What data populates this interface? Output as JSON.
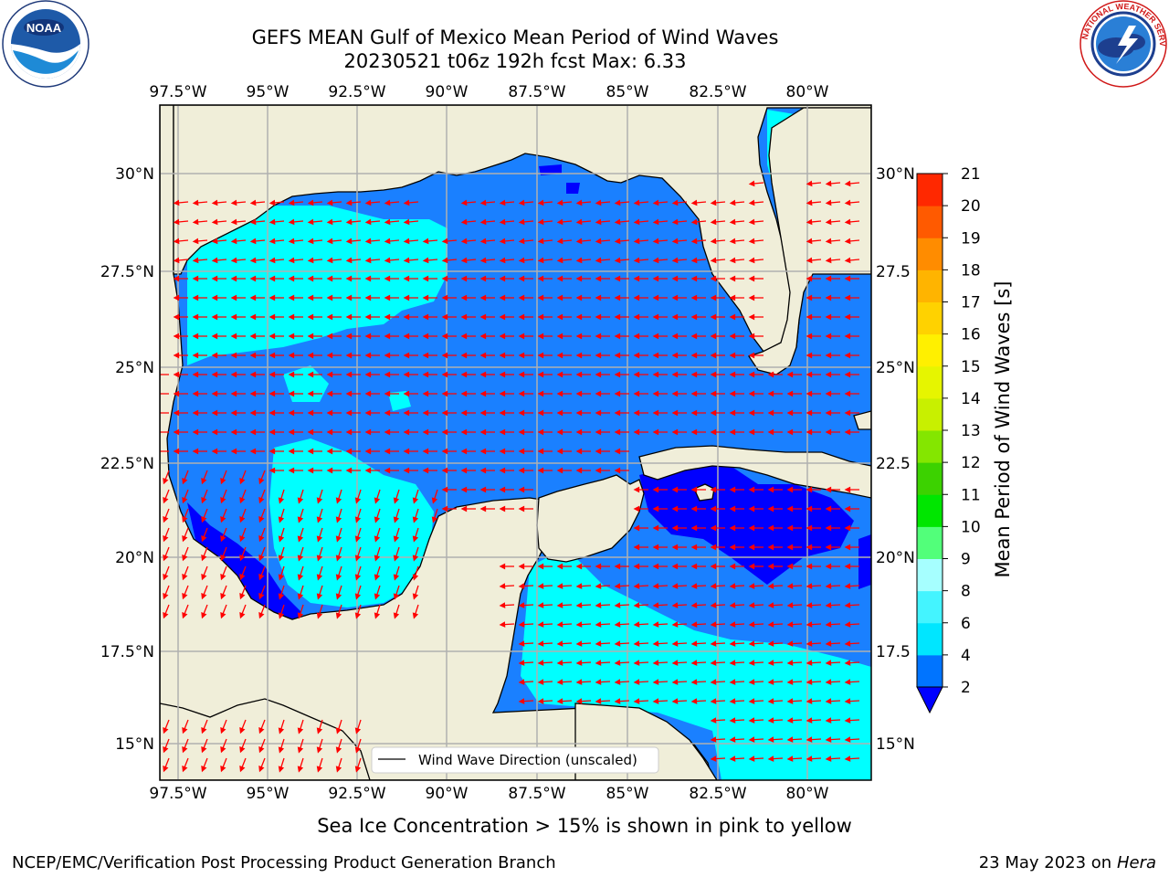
{
  "header": {
    "title_line1": "GEFS MEAN Gulf of Mexico Mean Period of Wind Waves",
    "title_line2": "20230521 t06z 192h fcst   Max: 6.33"
  },
  "logos": {
    "left": "noaa-logo-icon",
    "right": "national-weather-service-logo-icon"
  },
  "axes": {
    "lon_labels": [
      "97.5°W",
      "95°W",
      "92.5°W",
      "90°W",
      "87.5°W",
      "85°W",
      "82.5°W",
      "80°W"
    ],
    "lat_labels": [
      "30°N",
      "27.5°N",
      "25°N",
      "22.5°N",
      "20°N",
      "17.5°N",
      "15°N"
    ],
    "lat_labels_right": [
      "30°N",
      "27.5",
      "25°N",
      "22.5",
      "20°N",
      "17.5",
      "15°N"
    ]
  },
  "legend": {
    "label": "Wind Wave Direction (unscaled)"
  },
  "colorbar": {
    "label": "Mean Period of Wind Waves [s]",
    "ticks": [
      "2",
      "4",
      "6",
      "8",
      "9",
      "10",
      "11",
      "12",
      "13",
      "14",
      "15",
      "16",
      "17",
      "18",
      "19",
      "20",
      "21"
    ],
    "colors": [
      "#0074ff",
      "#00e6ff",
      "#44f4ff",
      "#a6ffff",
      "#52ff7a",
      "#00e600",
      "#3cd200",
      "#84e600",
      "#c8f000",
      "#e6f500",
      "#fff000",
      "#ffd200",
      "#ffb400",
      "#ff8c00",
      "#ff5a00",
      "#ff2800"
    ],
    "under_color": "#0000ff"
  },
  "colors": {
    "land": "#f0eed9",
    "ocean_low": "#0000ff",
    "ocean_mid": "#1a80ff",
    "ocean_high": "#00ffff",
    "arrow": "#ff0000"
  },
  "footer": {
    "sea_ice_note": "Sea Ice Concentration > 15% is shown in pink to yellow",
    "credit": "NCEP/EMC/Verification Post Processing Product Generation Branch",
    "date": "23 May 2023 on",
    "machine": "Hera"
  }
}
